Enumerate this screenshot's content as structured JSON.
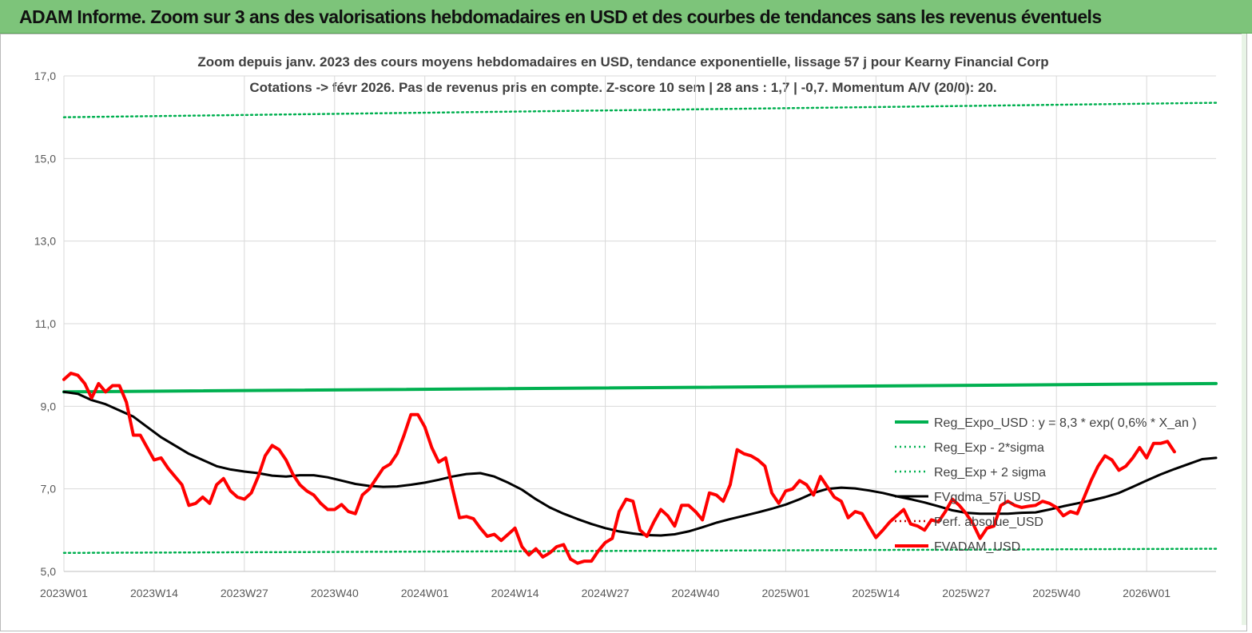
{
  "header": {
    "title": "ADAM Informe. Zoom sur 3 ans des valorisations hebdomadaires en USD et des courbes de tendances sans les revenus éventuels"
  },
  "chart_data": {
    "type": "line",
    "title": "Zoom depuis janv. 2023 des cours moyens hebdomadaires en USD, tendance exponentielle, lissage 57 j pour Kearny Financial Corp",
    "subtitle": "Cotations -> févr 2026.  Pas de revenus pris en compte. Z-score 10 sem  | 28 ans : 1,7 | -0,7. Momentum A/V (20/0): 20.",
    "xlabel": "",
    "ylabel": "",
    "ylim": [
      5.0,
      17.0
    ],
    "yticks": [
      "5,0",
      "7,0",
      "9,0",
      "11,0",
      "13,0",
      "15,0",
      "17,0"
    ],
    "xticks": [
      "2023W01",
      "2023W14",
      "2023W27",
      "2023W40",
      "2024W01",
      "2024W14",
      "2024W27",
      "2024W40",
      "2025W01",
      "2025W14",
      "2025W27",
      "2025W40",
      "2026W01"
    ],
    "xtick_weeks": [
      0,
      13,
      26,
      39,
      52,
      65,
      78,
      91,
      104,
      117,
      130,
      143,
      156
    ],
    "n_weeks": 166,
    "grid": "vertical and horizontal",
    "legend_position": "right, inside plot",
    "series": [
      {
        "name": "Reg_Expo_USD : y = 8,3 * exp( 0,6% *  X_an )",
        "color": "#00b050",
        "style": "solid-thick",
        "points": [
          [
            0,
            9.35
          ],
          [
            166,
            9.55
          ]
        ]
      },
      {
        "name": "Reg_Exp - 2*sigma",
        "color": "#00b050",
        "style": "dotted",
        "points": [
          [
            0,
            5.45
          ],
          [
            166,
            5.55
          ]
        ]
      },
      {
        "name": "Reg_Exp + 2 sigma",
        "color": "#00b050",
        "style": "dotted",
        "points": [
          [
            0,
            16.0
          ],
          [
            166,
            16.35
          ]
        ]
      },
      {
        "name": "FVgdma_57j_USD",
        "color": "#000000",
        "style": "solid",
        "points": [
          [
            0,
            9.35
          ],
          [
            2,
            9.3
          ],
          [
            4,
            9.15
          ],
          [
            6,
            9.05
          ],
          [
            8,
            8.9
          ],
          [
            10,
            8.75
          ],
          [
            12,
            8.5
          ],
          [
            14,
            8.25
          ],
          [
            16,
            8.05
          ],
          [
            18,
            7.85
          ],
          [
            20,
            7.7
          ],
          [
            22,
            7.55
          ],
          [
            24,
            7.47
          ],
          [
            26,
            7.42
          ],
          [
            28,
            7.38
          ],
          [
            30,
            7.32
          ],
          [
            32,
            7.3
          ],
          [
            34,
            7.33
          ],
          [
            36,
            7.33
          ],
          [
            38,
            7.28
          ],
          [
            40,
            7.2
          ],
          [
            42,
            7.12
          ],
          [
            44,
            7.07
          ],
          [
            46,
            7.05
          ],
          [
            48,
            7.06
          ],
          [
            50,
            7.1
          ],
          [
            52,
            7.15
          ],
          [
            54,
            7.22
          ],
          [
            56,
            7.3
          ],
          [
            58,
            7.36
          ],
          [
            60,
            7.38
          ],
          [
            62,
            7.3
          ],
          [
            64,
            7.15
          ],
          [
            66,
            6.98
          ],
          [
            68,
            6.75
          ],
          [
            70,
            6.55
          ],
          [
            72,
            6.4
          ],
          [
            74,
            6.27
          ],
          [
            76,
            6.15
          ],
          [
            78,
            6.05
          ],
          [
            80,
            5.97
          ],
          [
            82,
            5.92
          ],
          [
            84,
            5.88
          ],
          [
            86,
            5.87
          ],
          [
            88,
            5.9
          ],
          [
            90,
            5.97
          ],
          [
            92,
            6.07
          ],
          [
            94,
            6.18
          ],
          [
            96,
            6.27
          ],
          [
            98,
            6.35
          ],
          [
            100,
            6.43
          ],
          [
            102,
            6.52
          ],
          [
            104,
            6.62
          ],
          [
            106,
            6.75
          ],
          [
            108,
            6.9
          ],
          [
            110,
            7.0
          ],
          [
            112,
            7.03
          ],
          [
            114,
            7.01
          ],
          [
            116,
            6.96
          ],
          [
            118,
            6.9
          ],
          [
            120,
            6.82
          ],
          [
            122,
            6.75
          ],
          [
            124,
            6.67
          ],
          [
            126,
            6.58
          ],
          [
            128,
            6.48
          ],
          [
            130,
            6.42
          ],
          [
            132,
            6.4
          ],
          [
            134,
            6.4
          ],
          [
            136,
            6.4
          ],
          [
            138,
            6.42
          ],
          [
            140,
            6.43
          ],
          [
            142,
            6.5
          ],
          [
            144,
            6.58
          ],
          [
            146,
            6.65
          ],
          [
            148,
            6.72
          ],
          [
            150,
            6.8
          ],
          [
            152,
            6.9
          ],
          [
            154,
            7.05
          ],
          [
            156,
            7.2
          ],
          [
            158,
            7.35
          ],
          [
            160,
            7.48
          ],
          [
            162,
            7.6
          ],
          [
            164,
            7.72
          ],
          [
            166,
            7.75
          ]
        ]
      },
      {
        "name": "Perf. absolue_USD",
        "color": "#c00000",
        "style": "dotted",
        "points": []
      },
      {
        "name": "FVADAM_USD",
        "color": "#ff0000",
        "style": "solid-thick",
        "points": [
          [
            0,
            9.65
          ],
          [
            1,
            9.8
          ],
          [
            2,
            9.75
          ],
          [
            3,
            9.55
          ],
          [
            4,
            9.2
          ],
          [
            5,
            9.55
          ],
          [
            6,
            9.35
          ],
          [
            7,
            9.5
          ],
          [
            8,
            9.5
          ],
          [
            9,
            9.1
          ],
          [
            10,
            8.3
          ],
          [
            11,
            8.3
          ],
          [
            12,
            8.0
          ],
          [
            13,
            7.7
          ],
          [
            14,
            7.75
          ],
          [
            15,
            7.5
          ],
          [
            16,
            7.3
          ],
          [
            17,
            7.1
          ],
          [
            18,
            6.6
          ],
          [
            19,
            6.65
          ],
          [
            20,
            6.8
          ],
          [
            21,
            6.65
          ],
          [
            22,
            7.1
          ],
          [
            23,
            7.25
          ],
          [
            24,
            6.95
          ],
          [
            25,
            6.8
          ],
          [
            26,
            6.75
          ],
          [
            27,
            6.9
          ],
          [
            28,
            7.3
          ],
          [
            29,
            7.8
          ],
          [
            30,
            8.05
          ],
          [
            31,
            7.95
          ],
          [
            32,
            7.7
          ],
          [
            33,
            7.35
          ],
          [
            34,
            7.1
          ],
          [
            35,
            6.95
          ],
          [
            36,
            6.85
          ],
          [
            37,
            6.65
          ],
          [
            38,
            6.5
          ],
          [
            39,
            6.5
          ],
          [
            40,
            6.62
          ],
          [
            41,
            6.45
          ],
          [
            42,
            6.4
          ],
          [
            43,
            6.85
          ],
          [
            44,
            7.0
          ],
          [
            45,
            7.25
          ],
          [
            46,
            7.5
          ],
          [
            47,
            7.6
          ],
          [
            48,
            7.85
          ],
          [
            49,
            8.3
          ],
          [
            50,
            8.8
          ],
          [
            51,
            8.8
          ],
          [
            52,
            8.5
          ],
          [
            53,
            8.0
          ],
          [
            54,
            7.65
          ],
          [
            55,
            7.75
          ],
          [
            56,
            7.0
          ],
          [
            57,
            6.3
          ],
          [
            58,
            6.33
          ],
          [
            59,
            6.28
          ],
          [
            60,
            6.05
          ],
          [
            61,
            5.85
          ],
          [
            62,
            5.9
          ],
          [
            63,
            5.75
          ],
          [
            64,
            5.9
          ],
          [
            65,
            6.05
          ],
          [
            66,
            5.6
          ],
          [
            67,
            5.4
          ],
          [
            68,
            5.55
          ],
          [
            69,
            5.35
          ],
          [
            70,
            5.45
          ],
          [
            71,
            5.6
          ],
          [
            72,
            5.65
          ],
          [
            73,
            5.3
          ],
          [
            74,
            5.2
          ],
          [
            75,
            5.25
          ],
          [
            76,
            5.25
          ],
          [
            77,
            5.5
          ],
          [
            78,
            5.7
          ],
          [
            79,
            5.8
          ],
          [
            80,
            6.45
          ],
          [
            81,
            6.75
          ],
          [
            82,
            6.7
          ],
          [
            83,
            6.0
          ],
          [
            84,
            5.85
          ],
          [
            85,
            6.2
          ],
          [
            86,
            6.5
          ],
          [
            87,
            6.35
          ],
          [
            88,
            6.1
          ],
          [
            89,
            6.6
          ],
          [
            90,
            6.6
          ],
          [
            91,
            6.45
          ],
          [
            92,
            6.25
          ],
          [
            93,
            6.9
          ],
          [
            94,
            6.85
          ],
          [
            95,
            6.7
          ],
          [
            96,
            7.1
          ],
          [
            97,
            7.95
          ],
          [
            98,
            7.85
          ],
          [
            99,
            7.8
          ],
          [
            100,
            7.7
          ],
          [
            101,
            7.55
          ],
          [
            102,
            6.9
          ],
          [
            103,
            6.65
          ],
          [
            104,
            6.95
          ],
          [
            105,
            7.0
          ],
          [
            106,
            7.2
          ],
          [
            107,
            7.1
          ],
          [
            108,
            6.85
          ],
          [
            109,
            7.3
          ],
          [
            110,
            7.05
          ],
          [
            111,
            6.8
          ],
          [
            112,
            6.7
          ],
          [
            113,
            6.3
          ],
          [
            114,
            6.45
          ],
          [
            115,
            6.4
          ],
          [
            116,
            6.1
          ],
          [
            117,
            5.82
          ],
          [
            118,
            6.0
          ],
          [
            119,
            6.2
          ],
          [
            120,
            6.35
          ],
          [
            121,
            6.5
          ],
          [
            122,
            6.15
          ],
          [
            123,
            6.1
          ],
          [
            124,
            6.0
          ],
          [
            125,
            6.25
          ],
          [
            126,
            6.2
          ],
          [
            127,
            6.45
          ],
          [
            128,
            6.75
          ],
          [
            129,
            6.6
          ],
          [
            130,
            6.4
          ],
          [
            131,
            6.15
          ],
          [
            132,
            5.8
          ],
          [
            133,
            6.05
          ],
          [
            134,
            6.1
          ],
          [
            135,
            6.6
          ],
          [
            136,
            6.7
          ],
          [
            137,
            6.6
          ],
          [
            138,
            6.55
          ],
          [
            139,
            6.58
          ],
          [
            140,
            6.6
          ],
          [
            141,
            6.7
          ],
          [
            142,
            6.65
          ],
          [
            143,
            6.55
          ],
          [
            144,
            6.35
          ],
          [
            145,
            6.45
          ],
          [
            146,
            6.4
          ],
          [
            147,
            6.8
          ],
          [
            148,
            7.2
          ],
          [
            149,
            7.55
          ],
          [
            150,
            7.8
          ],
          [
            151,
            7.7
          ],
          [
            152,
            7.45
          ],
          [
            153,
            7.55
          ],
          [
            154,
            7.75
          ],
          [
            155,
            8.0
          ],
          [
            156,
            7.75
          ],
          [
            157,
            8.1
          ],
          [
            158,
            8.1
          ],
          [
            159,
            8.15
          ],
          [
            160,
            7.9
          ]
        ]
      }
    ]
  }
}
